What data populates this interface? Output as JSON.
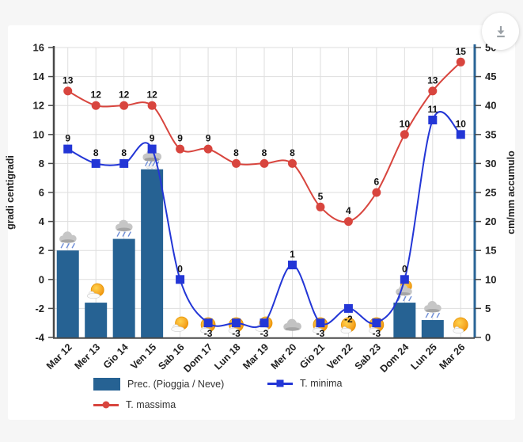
{
  "controls": {
    "download_icon": "download-arrow",
    "download_tooltip": ""
  },
  "colors": {
    "page_background": "#f6f6f6",
    "card_background": "#ffffff",
    "grid": "#dedede",
    "axis_dark": "#484848",
    "right_axis_blue": "#2a6496",
    "bar_blue": "#266293",
    "minima_blue": "#2336d6",
    "massima_red": "#d8453e",
    "label_dark": "#1f1f1f"
  },
  "chart_data": {
    "type": "combo-bar-line",
    "categories": [
      "Mar 12",
      "Mer 13",
      "Gio 14",
      "Ven 15",
      "Sab 16",
      "Dom 17",
      "Lun 18",
      "Mar 19",
      "Mer 20",
      "Gio 21",
      "Ven 22",
      "Sab 23",
      "Dom 24",
      "Lun 25",
      "Mar 26"
    ],
    "series": [
      {
        "name": "Prec. (Pioggia / Neve)",
        "type": "bar",
        "axis": "right",
        "color": "#266293",
        "values": [
          15,
          6,
          17,
          29,
          0,
          0,
          0,
          0,
          0,
          0,
          0,
          0,
          6,
          3,
          0
        ]
      },
      {
        "name": "T. minima",
        "type": "line",
        "axis": "left",
        "marker": "square",
        "color": "#2336d6",
        "values": [
          9,
          8,
          8,
          9,
          0,
          -3,
          -3,
          -3,
          1,
          -3,
          -2,
          -3,
          0,
          11,
          10
        ]
      },
      {
        "name": "T. massima",
        "type": "line",
        "axis": "left",
        "marker": "circle",
        "color": "#d8453e",
        "values": [
          13,
          12,
          12,
          12,
          9,
          9,
          8,
          8,
          8,
          5,
          4,
          6,
          10,
          13,
          15
        ]
      }
    ],
    "left_axis": {
      "label": "gradi centigradi",
      "min": -4,
      "max": 16,
      "step": 2
    },
    "right_axis": {
      "label": "cm/mm accumulo",
      "min": 0,
      "max": 50,
      "step": 5
    },
    "weather_icons": [
      "rain-cloud",
      "sun-cloud",
      "rain-cloud",
      "rain-snow-cloud",
      "sun-cloud",
      "sun",
      "sun",
      "sun-cloud",
      "cloud",
      "sun",
      "sun",
      "sun",
      "sun-rain-cloud",
      "rain-cloud",
      "sun"
    ],
    "grid": true,
    "point_labels_visible": true,
    "legend_position": "bottom"
  }
}
